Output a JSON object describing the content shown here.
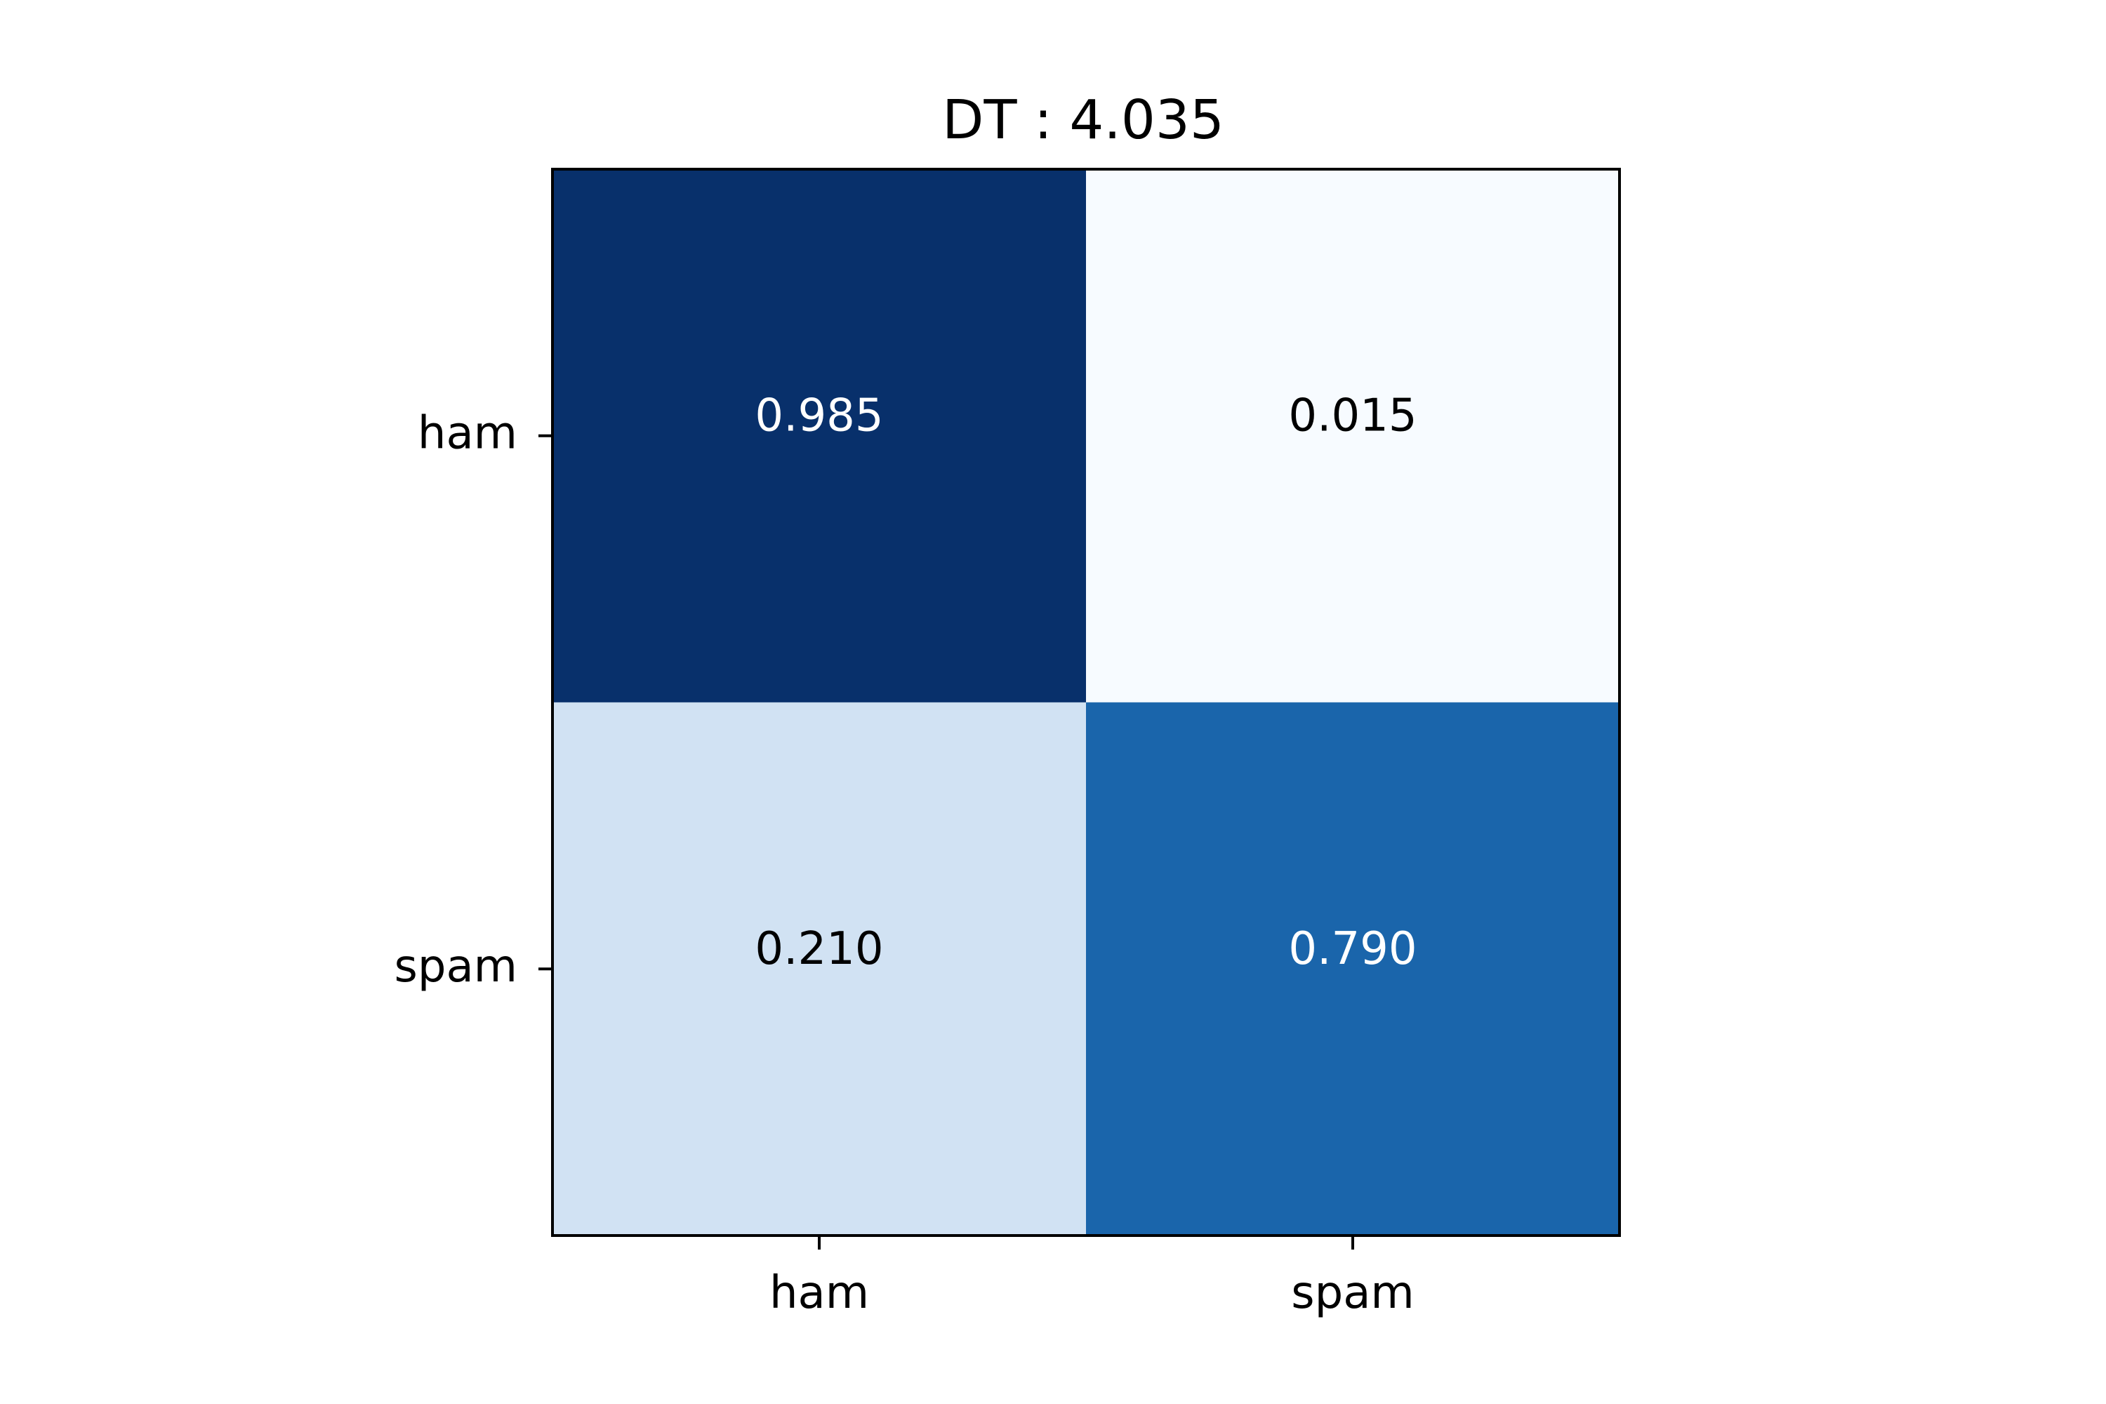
{
  "chart_data": {
    "type": "heatmap",
    "title": "DT : 4.035",
    "row_labels": [
      "ham",
      "spam"
    ],
    "col_labels": [
      "ham",
      "spam"
    ],
    "values": [
      [
        0.985,
        0.015
      ],
      [
        0.21,
        0.79
      ]
    ],
    "cell_labels": [
      [
        "0.985",
        "0.015"
      ],
      [
        "0.210",
        "0.790"
      ]
    ],
    "colormap": "Blues",
    "cell_colors": [
      [
        "#08306b",
        "#f7fbff"
      ],
      [
        "#d1e2f3",
        "#1a65ab"
      ]
    ],
    "text_colors": [
      [
        "#ffffff",
        "#000000"
      ],
      [
        "#000000",
        "#ffffff"
      ]
    ],
    "grid": false,
    "legend": "none"
  }
}
